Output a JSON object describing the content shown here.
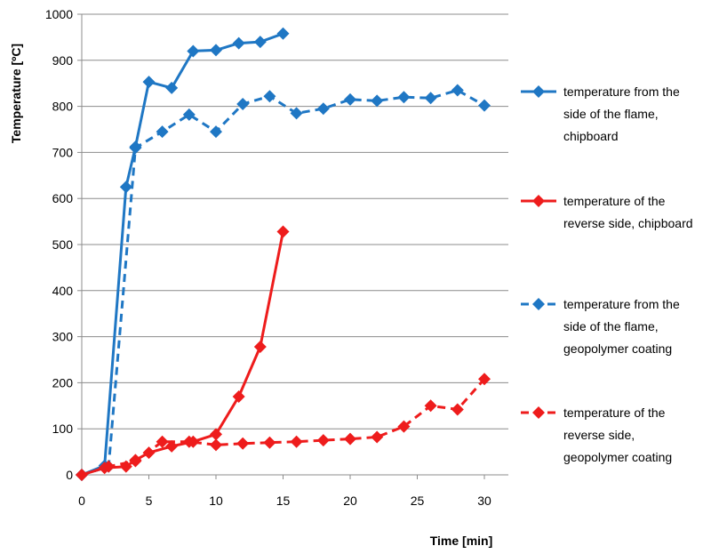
{
  "chart_data": {
    "type": "line",
    "title": "",
    "xlabel": "Time  [min]",
    "ylabel": "Temperature [ºC]",
    "xlim": [
      0,
      30
    ],
    "ylim": [
      0,
      1000
    ],
    "xticks": [
      0,
      5,
      10,
      15,
      20,
      25,
      30
    ],
    "yticks": [
      0,
      100,
      200,
      300,
      400,
      500,
      600,
      700,
      800,
      900,
      1000
    ],
    "grid": "horizontal",
    "legend_position": "right",
    "series": [
      {
        "name": "temperature from the side of the flame, chipboard",
        "legend_lines": [
          "temperature from the",
          "side of the flame,",
          "chipboard"
        ],
        "color": "#1f77c4",
        "dash": false,
        "x": [
          0,
          1.7,
          3.3,
          4.0,
          5.0,
          6.7,
          8.3,
          10.0,
          11.7,
          13.3,
          15.0
        ],
        "y": [
          0,
          20,
          625,
          712,
          853,
          840,
          920,
          922,
          937,
          940,
          958
        ]
      },
      {
        "name": "temperature of the reverse side, chipboard",
        "legend_lines": [
          "temperature of the",
          "reverse side, chipboard"
        ],
        "color": "#ee1c1c",
        "dash": false,
        "x": [
          0,
          1.7,
          3.3,
          4.0,
          5.0,
          6.7,
          8.3,
          10.0,
          11.7,
          13.3,
          15.0
        ],
        "y": [
          0,
          15,
          18,
          32,
          48,
          62,
          72,
          88,
          170,
          278,
          528
        ]
      },
      {
        "name": "temperature from the side of the flame, geopolymer coating",
        "legend_lines": [
          "temperature from the",
          "side of the flame,",
          "geopolymer coating"
        ],
        "color": "#1f77c4",
        "dash": true,
        "x": [
          0,
          2,
          4,
          6,
          8,
          10,
          12,
          14,
          16,
          18,
          20,
          22,
          24,
          26,
          28,
          30
        ],
        "y": [
          0,
          18,
          710,
          745,
          782,
          745,
          805,
          822,
          785,
          795,
          815,
          812,
          820,
          818,
          835,
          802
        ]
      },
      {
        "name": "temperature of the reverse side, geopolymer coating",
        "legend_lines": [
          "temperature of the",
          "reverse side,",
          "geopolymer coating"
        ],
        "color": "#ee1c1c",
        "dash": true,
        "x": [
          0,
          2,
          4,
          6,
          8,
          10,
          12,
          14,
          16,
          18,
          20,
          22,
          24,
          26,
          28,
          30
        ],
        "y": [
          0,
          18,
          30,
          72,
          72,
          65,
          68,
          70,
          72,
          75,
          78,
          82,
          105,
          150,
          142,
          208
        ]
      }
    ]
  }
}
